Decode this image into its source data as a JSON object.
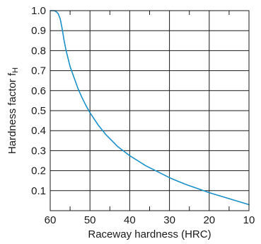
{
  "chart_data": {
    "type": "line",
    "title": "",
    "xlabel": "Raceway hardness (HRC)",
    "ylabel_main": "Hardness factor f",
    "ylabel_sub": "H",
    "xlim": [
      60,
      10
    ],
    "ylim": [
      0,
      1.0
    ],
    "x_reversed": true,
    "grid": true,
    "x_ticks": [
      60,
      50,
      40,
      30,
      20,
      10
    ],
    "x_tick_labels": [
      "60",
      "50",
      "40",
      "30",
      "20",
      "10"
    ],
    "x_minor_ticks": [
      55,
      45,
      35,
      25,
      15
    ],
    "y_ticks": [
      0.1,
      0.2,
      0.3,
      0.4,
      0.5,
      0.6,
      0.7,
      0.8,
      0.9,
      1.0
    ],
    "y_tick_labels": [
      "0.1",
      "0.2",
      "0.3",
      "0.4",
      "0.5",
      "0.6",
      "0.7",
      "0.8",
      "0.9",
      "1.0"
    ],
    "series": [
      {
        "color": "#1a90c8",
        "x": [
          60,
          59,
          58.5,
          58,
          57.5,
          57,
          56.5,
          56,
          55.5,
          55,
          54,
          53,
          52,
          51,
          50,
          49,
          48,
          47,
          46,
          45,
          44,
          43,
          42,
          41,
          40,
          38,
          36,
          34,
          32,
          30,
          28,
          26,
          24,
          22,
          20,
          18,
          16,
          14,
          12,
          10
        ],
        "y": [
          1.0,
          1.0,
          0.995,
          0.985,
          0.96,
          0.91,
          0.85,
          0.8,
          0.76,
          0.72,
          0.665,
          0.61,
          0.565,
          0.525,
          0.49,
          0.46,
          0.43,
          0.405,
          0.38,
          0.36,
          0.34,
          0.32,
          0.305,
          0.29,
          0.275,
          0.25,
          0.225,
          0.205,
          0.185,
          0.165,
          0.148,
          0.132,
          0.118,
          0.104,
          0.09,
          0.078,
          0.066,
          0.054,
          0.042,
          0.03
        ]
      }
    ]
  }
}
